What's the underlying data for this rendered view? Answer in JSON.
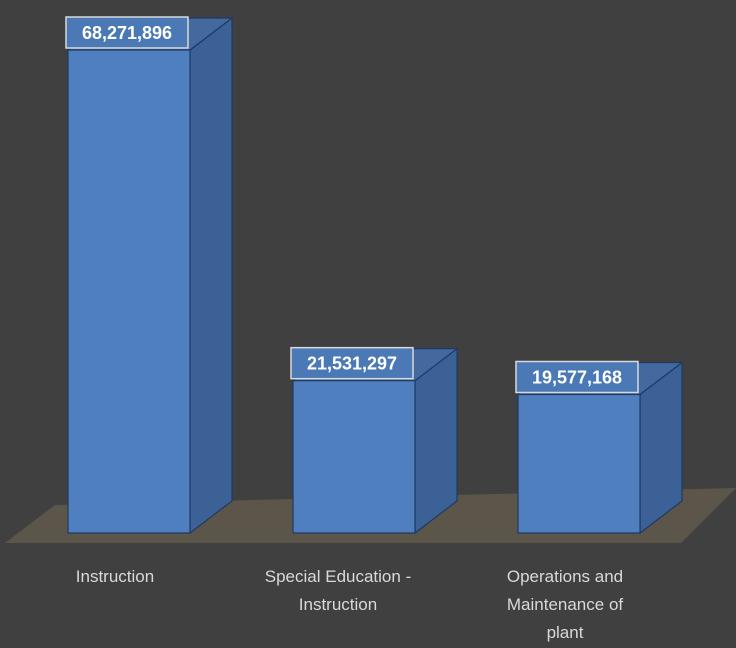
{
  "chart_data": {
    "type": "bar",
    "style": "3d-column",
    "categories": [
      [
        "Instruction"
      ],
      [
        "Special Education -",
        "Instruction"
      ],
      [
        "Operations and",
        "Maintenance of",
        "plant"
      ]
    ],
    "values": [
      68271896,
      21531297,
      19577168
    ],
    "value_labels": [
      "68,271,896",
      "21,531,297",
      "19,577,168"
    ],
    "title": "",
    "xlabel": "",
    "ylabel": "",
    "ylim": [
      0,
      68271896
    ],
    "grid": false,
    "legend": "none"
  },
  "colors": {
    "background": "#404040",
    "floor": "#5b5649",
    "bar_front": "#4f7fbf",
    "bar_side": "#3b6196",
    "bar_top": "#43699f",
    "bar_edge": "#1f3a63",
    "label_bg": "#4a79b5",
    "label_border": "#d9d9d9",
    "label_text": "#ffffff",
    "axis_text": "#d9d9d9"
  }
}
